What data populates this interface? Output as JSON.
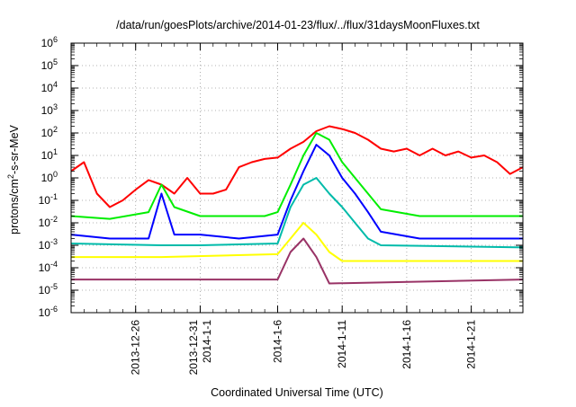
{
  "chart_data": {
    "type": "line",
    "title": "/data/run/goesPlots/archive/2014-01-23/flux/../flux/31daysMoonFluxes.txt",
    "xlabel": "Coordinated Universal Time (UTC)",
    "ylabel_main": "protons/cm",
    "ylabel_sup": "2",
    "ylabel_rest": "-s-sr-MeV",
    "y_scale": "log",
    "y_exponent_range": [
      -6,
      6
    ],
    "y_tick_exponents": [
      -6,
      -5,
      -4,
      -3,
      -2,
      -1,
      0,
      1,
      2,
      3,
      4,
      5,
      6
    ],
    "y_tick_base": "10",
    "x_range": [
      "2013-12-21",
      "2014-01-25"
    ],
    "x_ticks": [
      {
        "date": "2013-12-26",
        "lines": [
          "2013-12-26"
        ]
      },
      {
        "date": "2013-12-31",
        "lines": [
          "2013-12-31",
          "2014-1-1"
        ]
      },
      {
        "date": "2014-01-06",
        "lines": [
          "2014-1-6"
        ]
      },
      {
        "date": "2014-01-11",
        "lines": [
          "2014-1-11"
        ]
      },
      {
        "date": "2014-01-16",
        "lines": [
          "2014-1-16"
        ]
      },
      {
        "date": "2014-01-21",
        "lines": [
          "2014-1-21"
        ]
      }
    ],
    "grid": true,
    "grid_style": "dotted",
    "legend": "none",
    "series": [
      {
        "color": "#ff0000",
        "points": [
          [
            "2013-12-21",
            2
          ],
          [
            "2013-12-22",
            5
          ],
          [
            "2013-12-23",
            0.2
          ],
          [
            "2013-12-24",
            0.05
          ],
          [
            "2013-12-25",
            0.1
          ],
          [
            "2013-12-26",
            0.3
          ],
          [
            "2013-12-27",
            0.8
          ],
          [
            "2013-12-28",
            0.5
          ],
          [
            "2013-12-29",
            0.2
          ],
          [
            "2013-12-30",
            1
          ],
          [
            "2013-12-31",
            0.2
          ],
          [
            "2014-01-01",
            0.2
          ],
          [
            "2014-01-02",
            0.3
          ],
          [
            "2014-01-03",
            3
          ],
          [
            "2014-01-04",
            5
          ],
          [
            "2014-01-05",
            7
          ],
          [
            "2014-01-06",
            8
          ],
          [
            "2014-01-07",
            20
          ],
          [
            "2014-01-08",
            40
          ],
          [
            "2014-01-09",
            120
          ],
          [
            "2014-01-10",
            200
          ],
          [
            "2014-01-11",
            150
          ],
          [
            "2014-01-12",
            100
          ],
          [
            "2014-01-13",
            50
          ],
          [
            "2014-01-14",
            20
          ],
          [
            "2014-01-15",
            15
          ],
          [
            "2014-01-16",
            20
          ],
          [
            "2014-01-17",
            10
          ],
          [
            "2014-01-18",
            20
          ],
          [
            "2014-01-19",
            10
          ],
          [
            "2014-01-20",
            15
          ],
          [
            "2014-01-21",
            8
          ],
          [
            "2014-01-22",
            10
          ],
          [
            "2014-01-23",
            5
          ],
          [
            "2014-01-24",
            1.5
          ],
          [
            "2014-01-25",
            3
          ]
        ]
      },
      {
        "color": "#00ee00",
        "points": [
          [
            "2013-12-21",
            0.02
          ],
          [
            "2013-12-24",
            0.015
          ],
          [
            "2013-12-27",
            0.03
          ],
          [
            "2013-12-28",
            0.5
          ],
          [
            "2013-12-29",
            0.05
          ],
          [
            "2013-12-31",
            0.02
          ],
          [
            "2014-01-03",
            0.02
          ],
          [
            "2014-01-05",
            0.02
          ],
          [
            "2014-01-06",
            0.03
          ],
          [
            "2014-01-07",
            0.5
          ],
          [
            "2014-01-08",
            10
          ],
          [
            "2014-01-09",
            100
          ],
          [
            "2014-01-10",
            50
          ],
          [
            "2014-01-11",
            5
          ],
          [
            "2014-01-12",
            1
          ],
          [
            "2014-01-13",
            0.2
          ],
          [
            "2014-01-14",
            0.04
          ],
          [
            "2014-01-17",
            0.02
          ],
          [
            "2014-01-21",
            0.02
          ],
          [
            "2014-01-25",
            0.02
          ]
        ]
      },
      {
        "color": "#0000ff",
        "points": [
          [
            "2013-12-21",
            0.003
          ],
          [
            "2013-12-24",
            0.002
          ],
          [
            "2013-12-27",
            0.002
          ],
          [
            "2013-12-28",
            0.2
          ],
          [
            "2013-12-29",
            0.003
          ],
          [
            "2013-12-31",
            0.003
          ],
          [
            "2014-01-03",
            0.002
          ],
          [
            "2014-01-06",
            0.003
          ],
          [
            "2014-01-07",
            0.1
          ],
          [
            "2014-01-08",
            2
          ],
          [
            "2014-01-09",
            30
          ],
          [
            "2014-01-10",
            10
          ],
          [
            "2014-01-11",
            1
          ],
          [
            "2014-01-12",
            0.2
          ],
          [
            "2014-01-13",
            0.03
          ],
          [
            "2014-01-14",
            0.004
          ],
          [
            "2014-01-17",
            0.002
          ],
          [
            "2014-01-21",
            0.002
          ],
          [
            "2014-01-25",
            0.002
          ]
        ]
      },
      {
        "color": "#00bbaa",
        "points": [
          [
            "2013-12-21",
            0.0012
          ],
          [
            "2013-12-28",
            0.001
          ],
          [
            "2013-12-31",
            0.001
          ],
          [
            "2014-01-06",
            0.0012
          ],
          [
            "2014-01-07",
            0.05
          ],
          [
            "2014-01-08",
            0.5
          ],
          [
            "2014-01-09",
            1
          ],
          [
            "2014-01-10",
            0.2
          ],
          [
            "2014-01-11",
            0.05
          ],
          [
            "2014-01-12",
            0.01
          ],
          [
            "2014-01-13",
            0.002
          ],
          [
            "2014-01-14",
            0.001
          ],
          [
            "2014-01-25",
            0.0008
          ]
        ]
      },
      {
        "color": "#ffff00",
        "points": [
          [
            "2013-12-21",
            0.0003
          ],
          [
            "2013-12-28",
            0.0003
          ],
          [
            "2014-01-06",
            0.0004
          ],
          [
            "2014-01-07",
            0.002
          ],
          [
            "2014-01-08",
            0.01
          ],
          [
            "2014-01-09",
            0.003
          ],
          [
            "2014-01-10",
            0.0005
          ],
          [
            "2014-01-11",
            0.0002
          ],
          [
            "2014-01-25",
            0.0002
          ]
        ]
      },
      {
        "color": "#993366",
        "points": [
          [
            "2013-12-21",
            3e-05
          ],
          [
            "2013-12-28",
            3e-05
          ],
          [
            "2014-01-06",
            3e-05
          ],
          [
            "2014-01-07",
            0.0005
          ],
          [
            "2014-01-08",
            0.002
          ],
          [
            "2014-01-09",
            0.0003
          ],
          [
            "2014-01-10",
            2e-05
          ],
          [
            "2014-01-25",
            3e-05
          ]
        ]
      }
    ]
  }
}
